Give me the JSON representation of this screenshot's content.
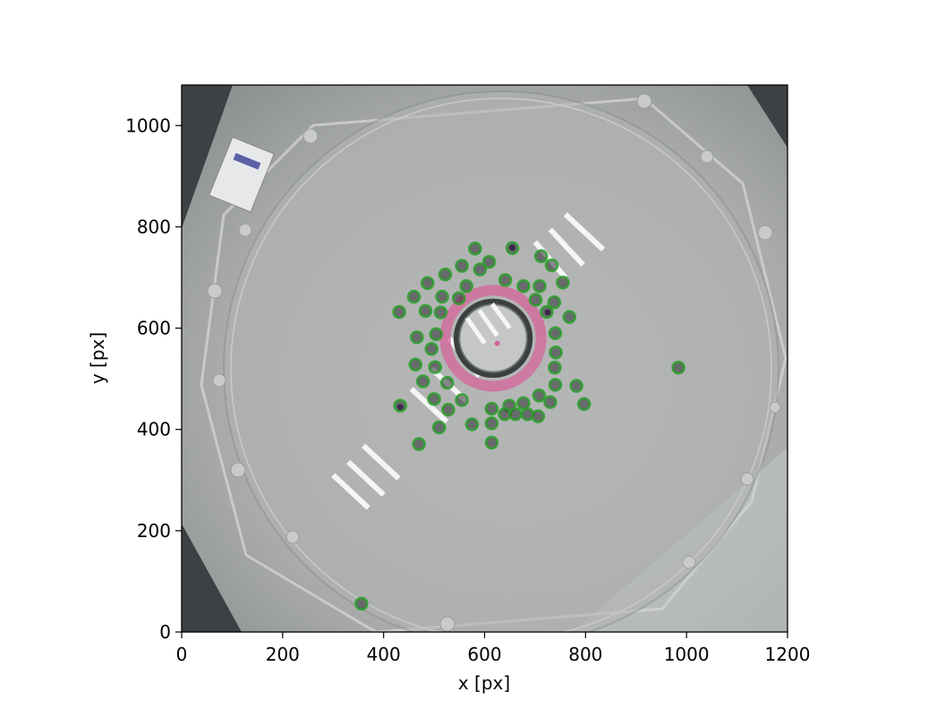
{
  "chart_data": {
    "type": "scatter",
    "background": "grayscale camera image of a circular arena with a central ring",
    "xlabel": "x [px]",
    "ylabel": "y [px]",
    "xlim": [
      0,
      1200
    ],
    "ylim": [
      0,
      1080
    ],
    "xticks": [
      0,
      200,
      400,
      600,
      800,
      1000,
      1200
    ],
    "yticks": [
      0,
      200,
      400,
      600,
      800,
      1000
    ],
    "grid": false,
    "detection_color": "#2ca02c",
    "ring_color": "#d6649a",
    "central_ring": {
      "center": [
        617,
        580
      ],
      "outer_radius": 95,
      "inner_radius": 73
    },
    "series": [
      {
        "marker": "open circle",
        "points": [
          [
            581,
            757
          ],
          [
            655,
            758
          ],
          [
            555,
            723
          ],
          [
            609,
            731
          ],
          [
            591,
            716
          ],
          [
            522,
            706
          ],
          [
            712,
            742
          ],
          [
            733,
            724
          ],
          [
            487,
            689
          ],
          [
            641,
            695
          ],
          [
            677,
            683
          ],
          [
            755,
            690
          ],
          [
            564,
            683
          ],
          [
            709,
            683
          ],
          [
            460,
            662
          ],
          [
            516,
            662
          ],
          [
            549,
            659
          ],
          [
            701,
            656
          ],
          [
            738,
            651
          ],
          [
            431,
            632
          ],
          [
            483,
            634
          ],
          [
            513,
            631
          ],
          [
            723,
            632
          ],
          [
            768,
            622
          ],
          [
            466,
            582
          ],
          [
            504,
            588
          ],
          [
            740,
            590
          ],
          [
            495,
            559
          ],
          [
            741,
            552
          ],
          [
            463,
            528
          ],
          [
            502,
            523
          ],
          [
            739,
            522
          ],
          [
            984,
            522
          ],
          [
            478,
            495
          ],
          [
            526,
            492
          ],
          [
            740,
            488
          ],
          [
            782,
            486
          ],
          [
            500,
            460
          ],
          [
            555,
            458
          ],
          [
            708,
            467
          ],
          [
            433,
            447
          ],
          [
            649,
            447
          ],
          [
            677,
            452
          ],
          [
            730,
            454
          ],
          [
            797,
            450
          ],
          [
            528,
            439
          ],
          [
            614,
            441
          ],
          [
            640,
            430
          ],
          [
            661,
            430
          ],
          [
            685,
            430
          ],
          [
            706,
            426
          ],
          [
            510,
            404
          ],
          [
            575,
            410
          ],
          [
            614,
            412
          ],
          [
            470,
            371
          ],
          [
            614,
            374
          ],
          [
            356,
            56
          ]
        ]
      },
      {
        "name_hidden": true,
        "marker": "filled dot (dark)",
        "points": [
          [
            433,
            444
          ],
          [
            725,
            631
          ],
          [
            655,
            759
          ]
        ]
      }
    ],
    "stripes": [
      {
        "from": [
          300,
          310
        ],
        "to": [
          370,
          245
        ]
      },
      {
        "from": [
          330,
          336
        ],
        "to": [
          400,
          271
        ]
      },
      {
        "from": [
          360,
          368
        ],
        "to": [
          430,
          303
        ]
      },
      {
        "from": [
          455,
          480
        ],
        "to": [
          525,
          415
        ]
      },
      {
        "from": [
          495,
          520
        ],
        "to": [
          565,
          455
        ]
      },
      {
        "from": [
          530,
          580
        ],
        "to": [
          590,
          505
        ]
      },
      {
        "from": [
          560,
          605
        ],
        "to": [
          620,
          530
        ]
      },
      {
        "from": [
          590,
          625
        ],
        "to": [
          645,
          555
        ]
      },
      {
        "from": [
          700,
          770
        ],
        "to": [
          760,
          700
        ]
      },
      {
        "from": [
          730,
          795
        ],
        "to": [
          795,
          725
        ]
      },
      {
        "from": [
          760,
          825
        ],
        "to": [
          835,
          755
        ]
      }
    ]
  }
}
